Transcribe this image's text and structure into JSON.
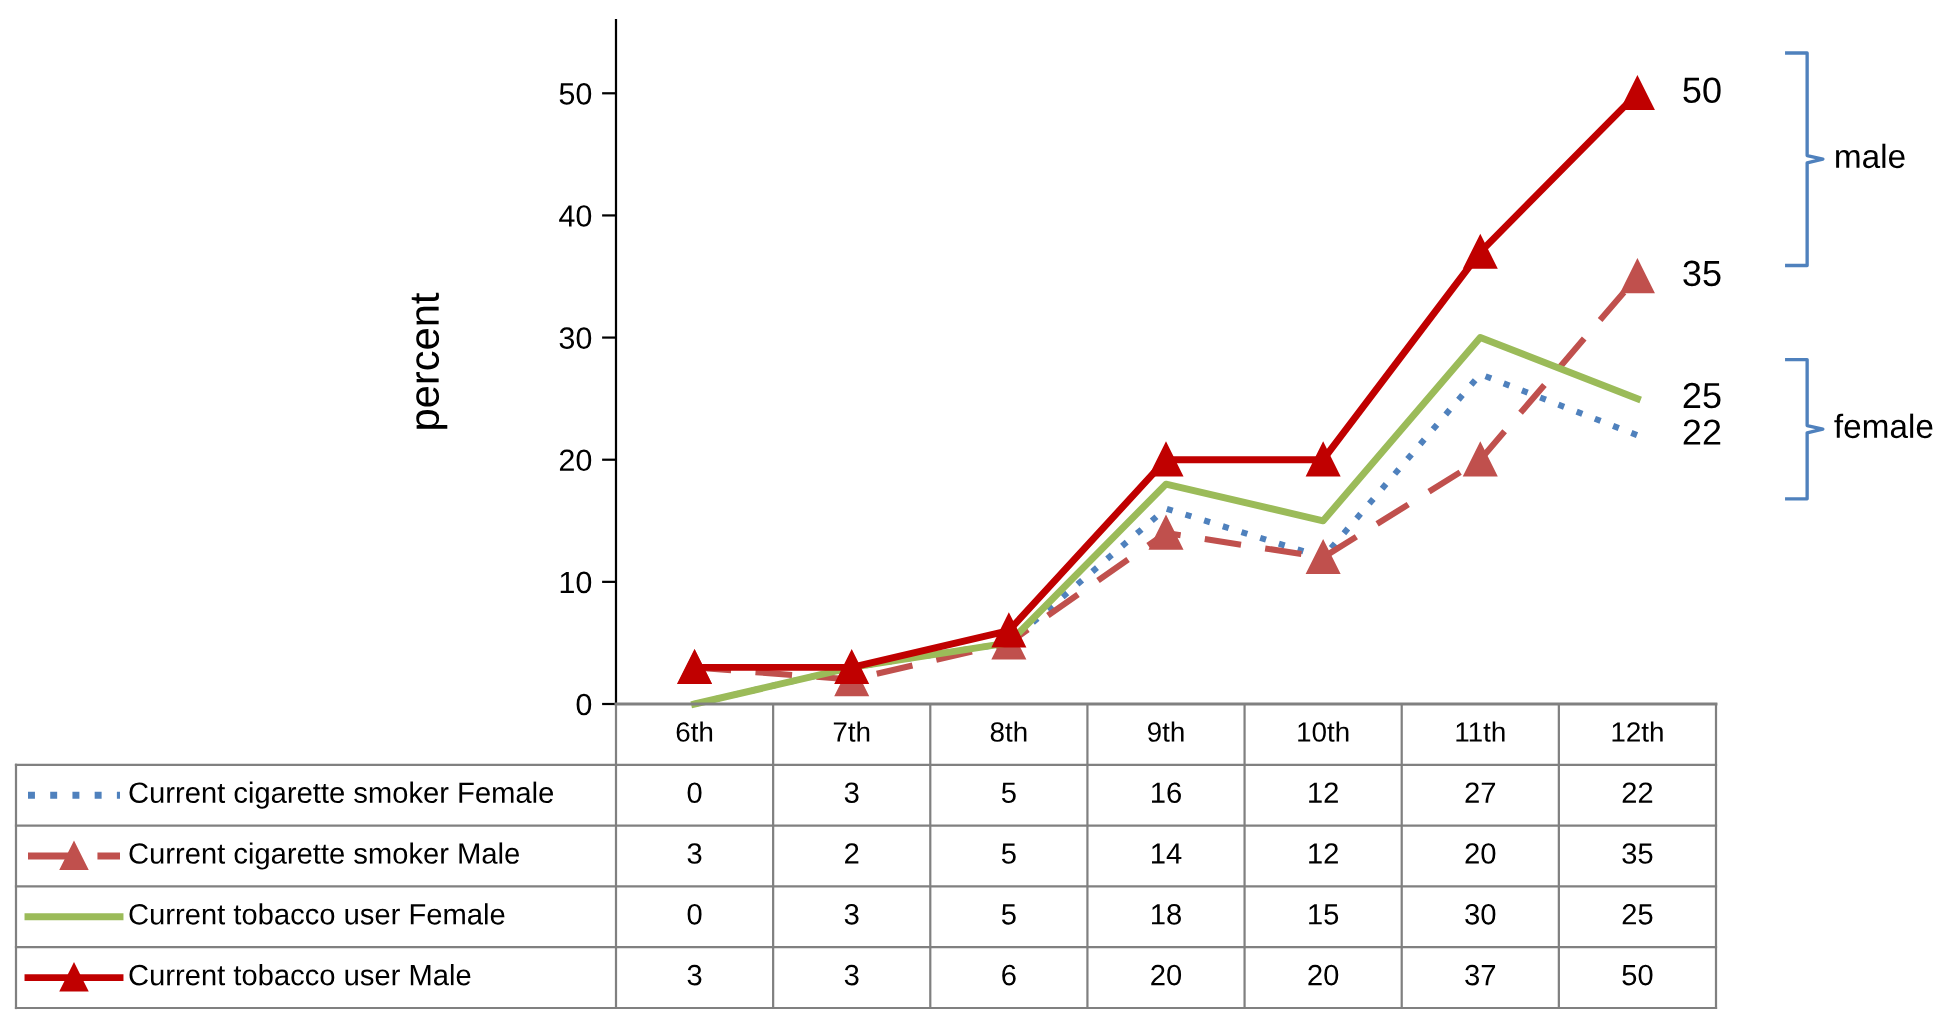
{
  "chart_data": {
    "type": "line",
    "ylabel": "percent",
    "categories": [
      "6th",
      "7th",
      "8th",
      "9th",
      "10th",
      "11th",
      "12th"
    ],
    "series": [
      {
        "name": "Current cigarette smoker Female",
        "color": "#4f81bd",
        "line_style": "dotted",
        "marker": "none",
        "values": [
          0,
          3,
          5,
          16,
          12,
          27,
          22
        ]
      },
      {
        "name": "Current cigarette smoker Male",
        "color": "#c0504d",
        "line_style": "dashed",
        "marker": "triangle",
        "values": [
          3,
          2,
          5,
          14,
          12,
          20,
          35
        ]
      },
      {
        "name": "Current tobacco user Female",
        "color": "#9bbb59",
        "line_style": "solid",
        "marker": "none",
        "values": [
          0,
          3,
          5,
          18,
          15,
          30,
          25
        ]
      },
      {
        "name": "Current tobacco user Male",
        "color": "#c00000",
        "line_style": "solid",
        "marker": "triangle",
        "values": [
          3,
          3,
          6,
          20,
          20,
          37,
          50
        ]
      }
    ],
    "ylim": [
      0,
      56
    ],
    "yticks": [
      0,
      10,
      20,
      30,
      40,
      50
    ],
    "grid": false,
    "legend": "bottom",
    "data_labels": true,
    "annotations": [
      {
        "text": "50",
        "x": "12th",
        "y": 50
      },
      {
        "text": "35",
        "x": "12th",
        "y": 35
      },
      {
        "text": "25",
        "x": "12th",
        "y": 25
      },
      {
        "text": "22",
        "x": "12th",
        "y": 22
      },
      "male",
      "female"
    ]
  }
}
